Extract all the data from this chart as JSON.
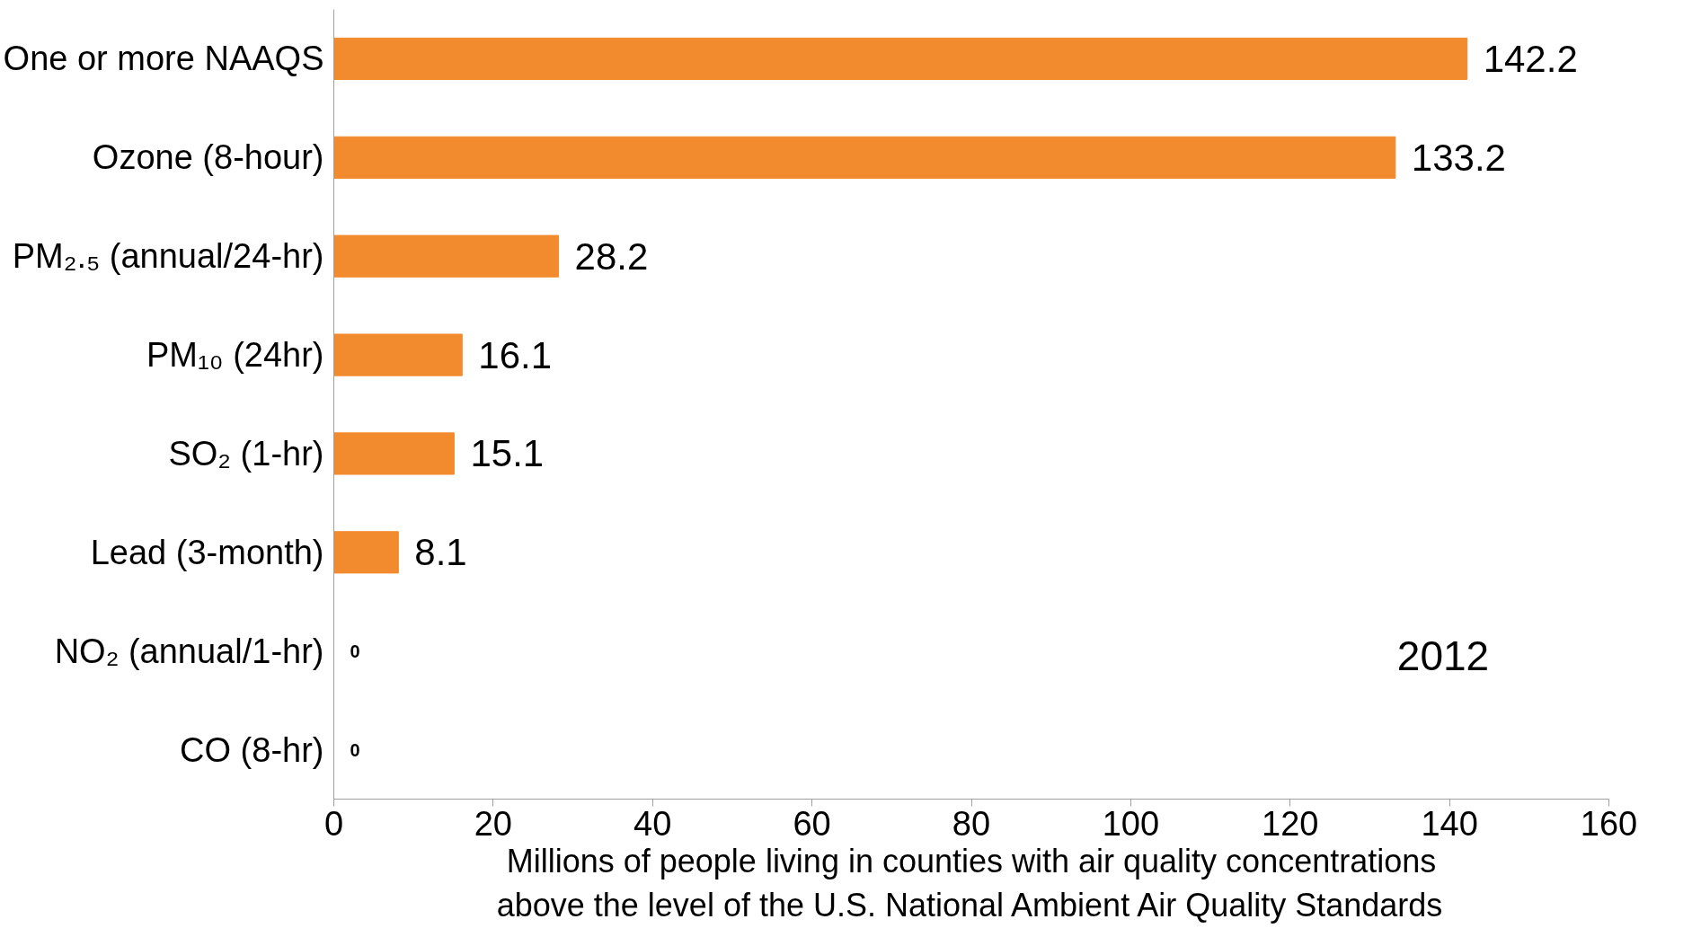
{
  "chart_data": {
    "type": "bar",
    "orientation": "horizontal",
    "categories": [
      "One or more NAAQS",
      "Ozone (8-hour)",
      "PM₂.₅ (annual/24-hr)",
      "PM₁₀ (24hr)",
      "SO₂ (1-hr)",
      "Lead (3-month)",
      "NO₂ (annual/1-hr)",
      "CO (8-hr)"
    ],
    "values": [
      142.2,
      133.2,
      28.2,
      16.1,
      15.1,
      8.1,
      0,
      0
    ],
    "color": "#f28a2e",
    "data_labels": true,
    "xlim": [
      0,
      160
    ],
    "xticks": [
      0,
      20,
      40,
      60,
      80,
      100,
      120,
      140,
      160
    ],
    "xlabel": "Millions of people living in counties with air quality concentrations\nabove the level of the U.S. National Ambient Air Quality Standards",
    "annotations": [
      "2012"
    ],
    "grid": false
  }
}
